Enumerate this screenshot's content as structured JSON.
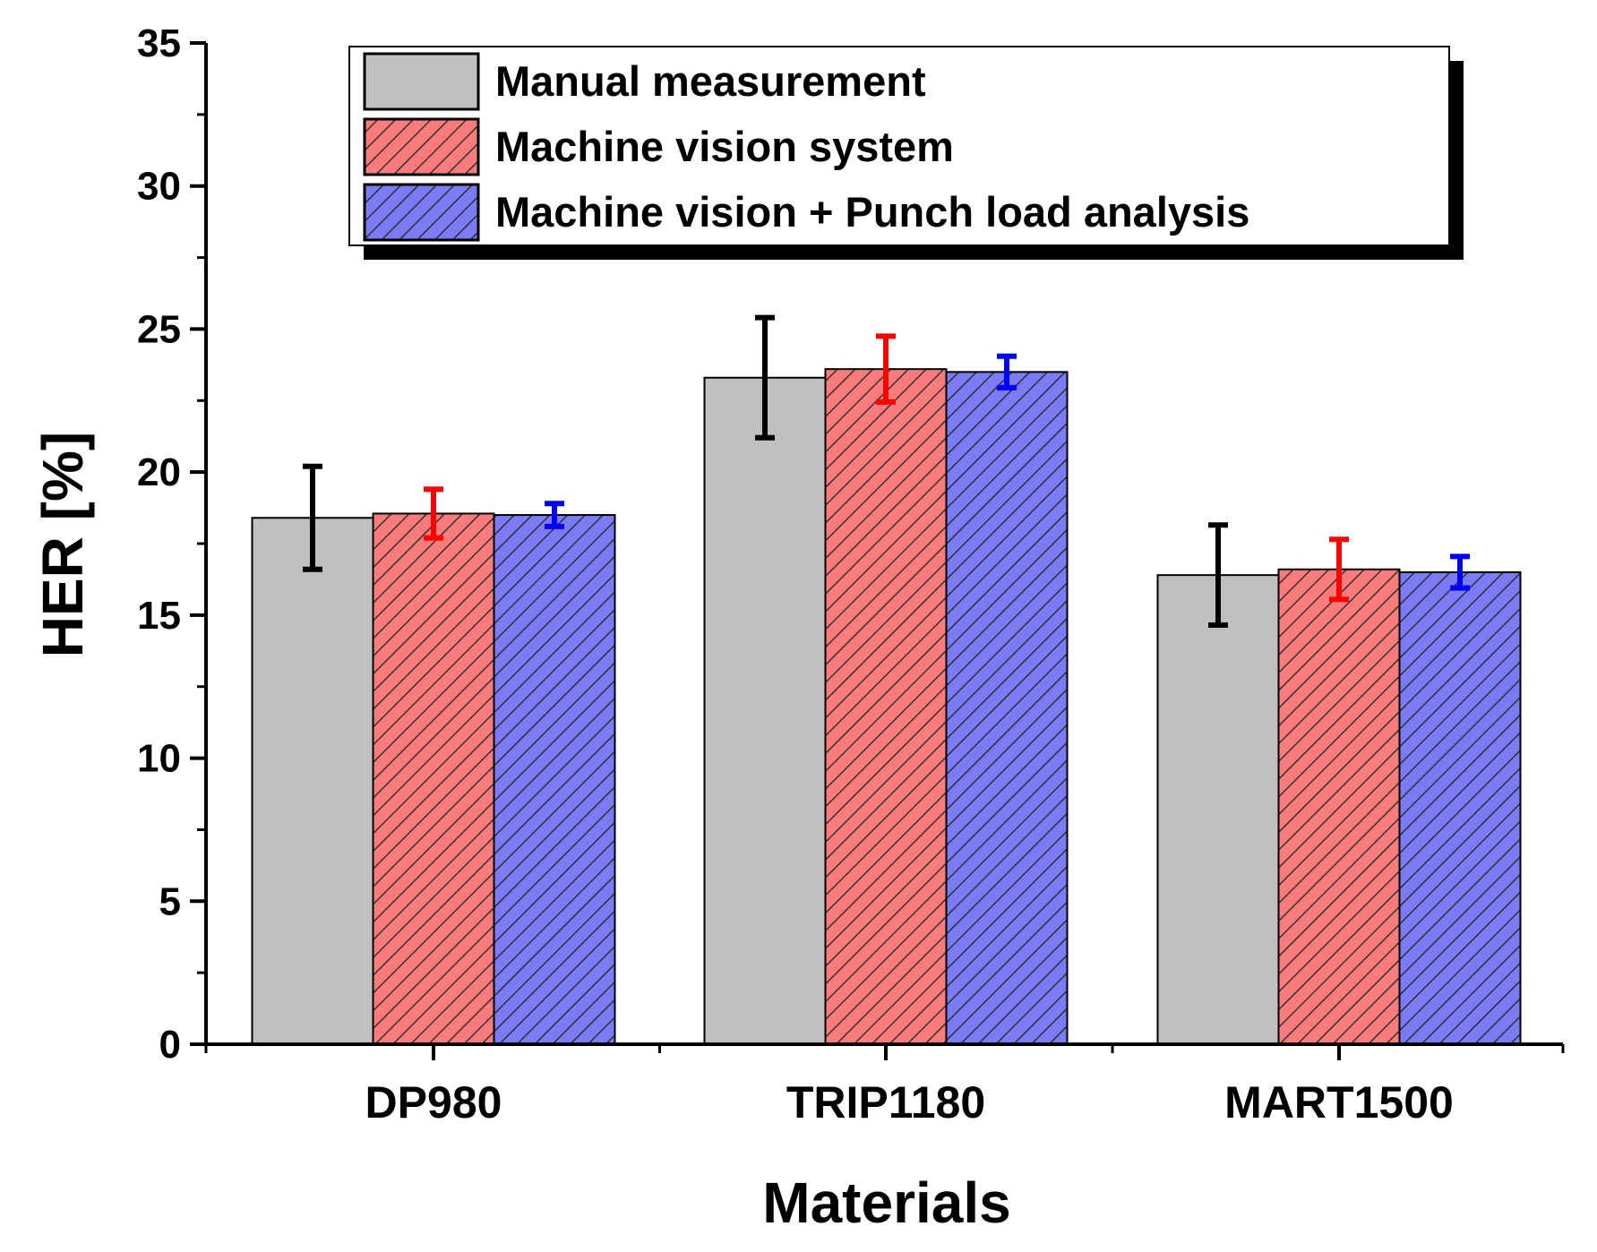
{
  "chart_data": {
    "type": "bar",
    "title": "",
    "xlabel": "Materials",
    "ylabel": "HER [%]",
    "ylim": [
      0,
      35
    ],
    "yticks": [
      0,
      5,
      10,
      15,
      20,
      25,
      30,
      35
    ],
    "categories": [
      "DP980",
      "TRIP1180",
      "MART1500"
    ],
    "series": [
      {
        "name": "Manual measurement",
        "fill": "#c0c0c0",
        "error_color": "#000000",
        "pattern": "none",
        "values": [
          18.4,
          23.3,
          16.4
        ],
        "errors": [
          1.8,
          2.1,
          1.75
        ]
      },
      {
        "name": "Machine vision system",
        "fill": "#f87c7c",
        "error_color": "#ff0000",
        "pattern": "diagonal-hatch",
        "values": [
          18.55,
          23.6,
          16.6
        ],
        "errors": [
          0.85,
          1.15,
          1.05
        ]
      },
      {
        "name": "Machine vision + Punch load analysis",
        "fill": "#7b7bf4",
        "error_color": "#0000ff",
        "pattern": "diagonal-hatch",
        "values": [
          18.5,
          23.5,
          16.5
        ],
        "errors": [
          0.4,
          0.55,
          0.55
        ]
      }
    ],
    "legend_position": "top-right",
    "grid": false
  }
}
